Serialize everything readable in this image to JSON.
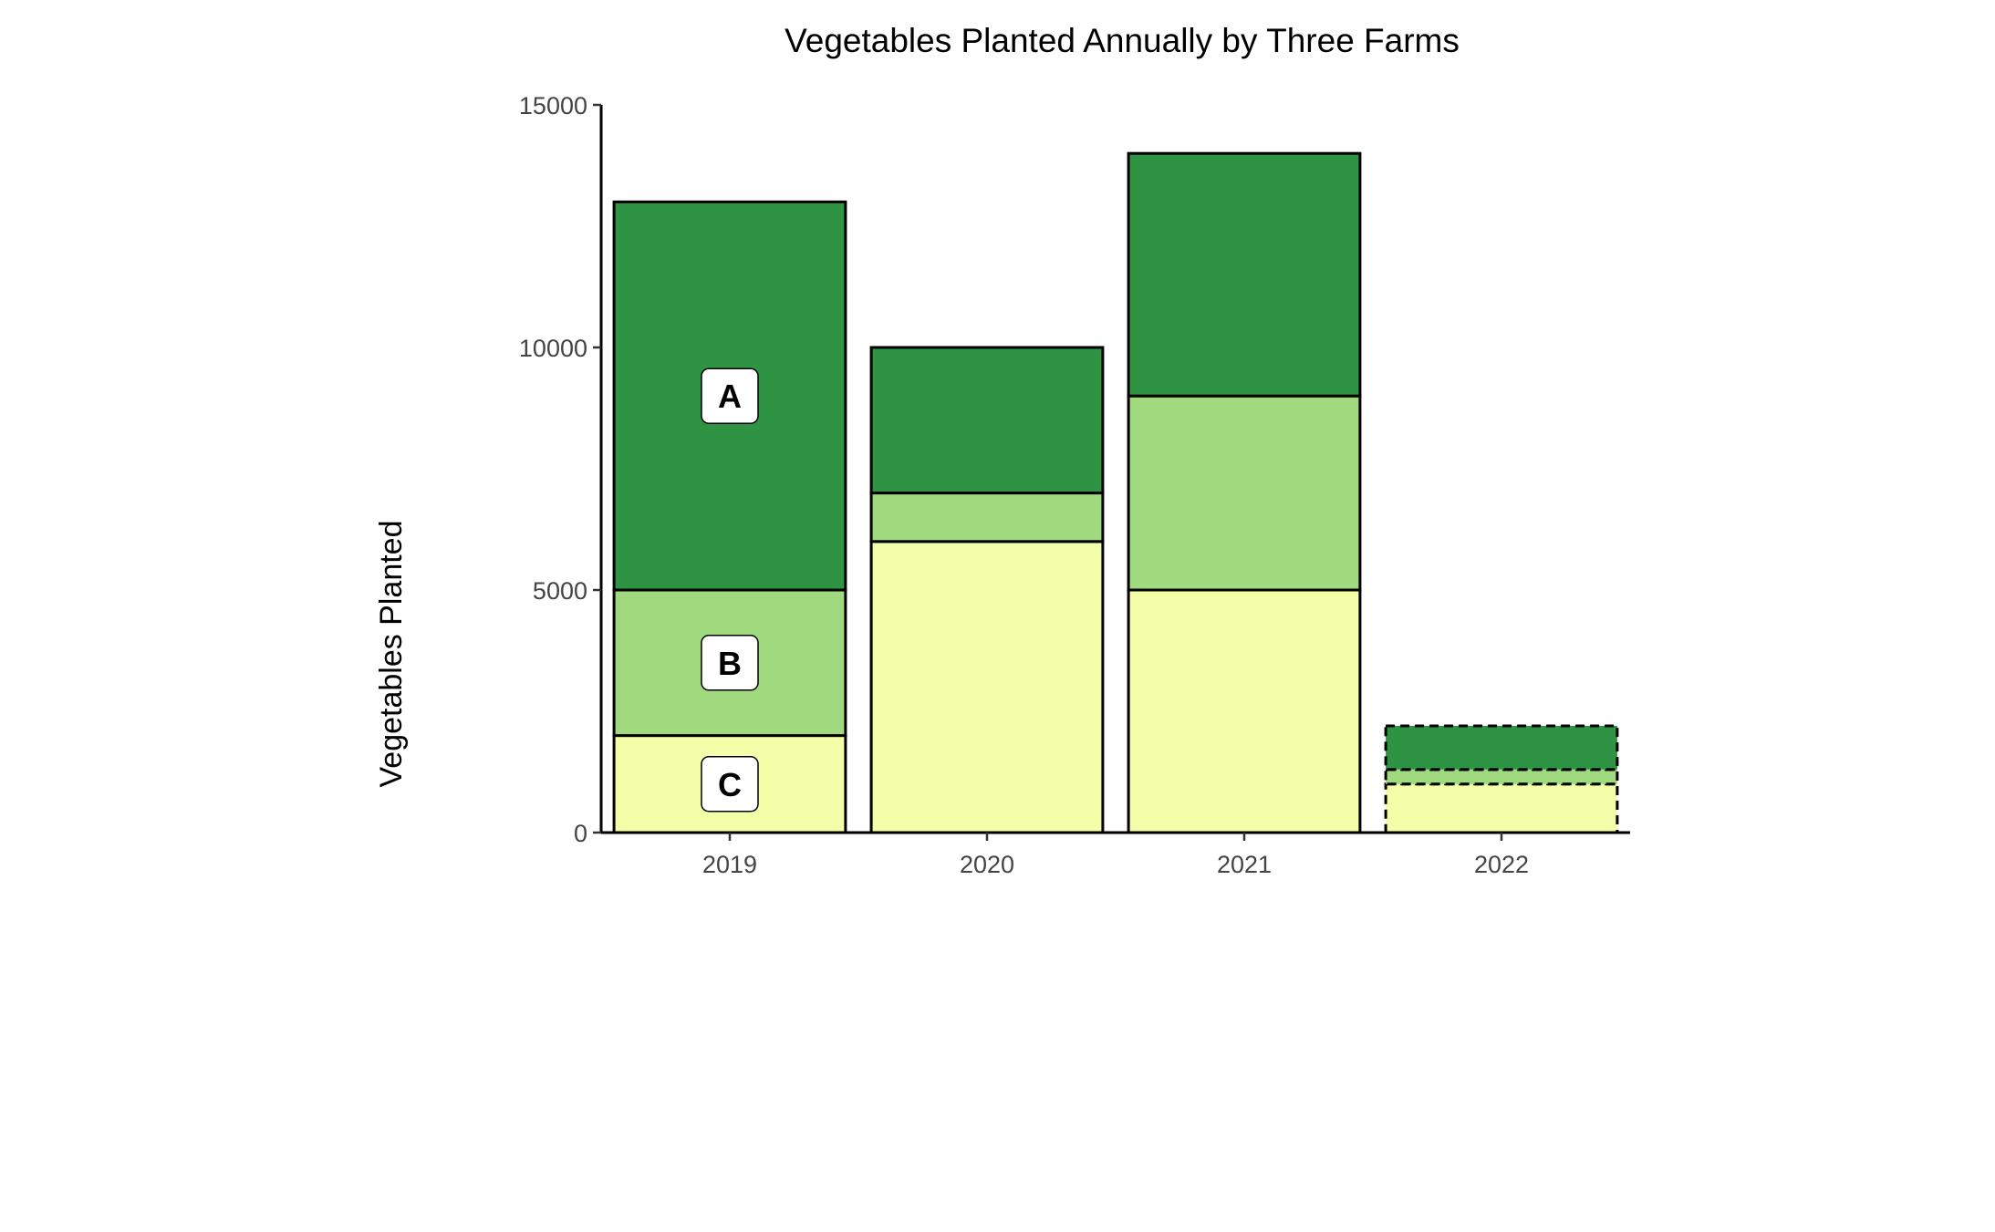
{
  "chart_data": {
    "type": "bar",
    "stacked": true,
    "title": "Vegetables Planted Annually by Three Farms",
    "xlabel": "",
    "ylabel": "Vegetables Planted",
    "ylim": [
      0,
      15000
    ],
    "yticks": [
      "0",
      "5000",
      "10000",
      "15000"
    ],
    "categories": [
      "2019",
      "2020",
      "2021",
      "2022"
    ],
    "series": [
      {
        "name": "C",
        "color": "#f3ffa8",
        "values": [
          2000,
          6000,
          5000,
          1000
        ]
      },
      {
        "name": "B",
        "color": "#a1d97e",
        "values": [
          3000,
          1000,
          4000,
          300
        ]
      },
      {
        "name": "A",
        "color": "#2e9443",
        "values": [
          8000,
          3000,
          5000,
          900
        ]
      }
    ],
    "segment_labels": [
      "A",
      "B",
      "C"
    ],
    "segment_labels_on": "2019",
    "dashed_category": "2022",
    "grid": false,
    "legend": "none"
  }
}
